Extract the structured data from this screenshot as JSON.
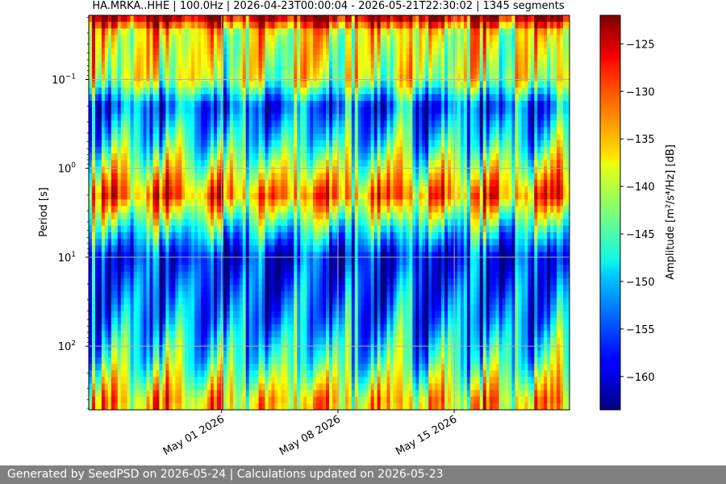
{
  "chart_data": {
    "type": "heatmap",
    "title": "HA.MRKA..HHE | 100.0Hz | 2026-04-23T00:00:04 - 2026-05-21T22:30:02 | 1345 segments",
    "ylabel": "Period [s]",
    "xlabel": "",
    "y_scale": "log",
    "y_direction": "increasing-downward",
    "ylim": [
      0.019,
      520
    ],
    "xlim": [
      "2026-04-23T00:00:04",
      "2026-05-21T22:30:02"
    ],
    "grid": true,
    "x_ticks": [
      "May 01 2026",
      "May 08 2026",
      "May 15 2026"
    ],
    "y_ticks": [
      {
        "value": 0.1,
        "base": "10",
        "exp": "−1"
      },
      {
        "value": 1,
        "base": "10",
        "exp": "0"
      },
      {
        "value": 10,
        "base": "10",
        "exp": "1"
      },
      {
        "value": 100,
        "base": "10",
        "exp": "2"
      }
    ],
    "colorbar": {
      "label": "Amplitude [m²/s⁴/Hz] [dB]",
      "range": [
        -163.5,
        -122
      ],
      "ticks": [
        -125,
        -130,
        -135,
        -140,
        -145,
        -150,
        -155,
        -160
      ],
      "colormap": "jet"
    },
    "segments": 1345,
    "sampling_rate_hz": 100.0,
    "period_band_profile": [
      {
        "period": 0.02,
        "db": -124
      },
      {
        "period": 0.03,
        "db": -138
      },
      {
        "period": 0.1,
        "db": -140
      },
      {
        "period": 0.2,
        "db": -155
      },
      {
        "period": 0.5,
        "db": -148
      },
      {
        "period": 2,
        "db": -132
      },
      {
        "period": 5,
        "db": -148
      },
      {
        "period": 10,
        "db": -158
      },
      {
        "period": 50,
        "db": -153
      },
      {
        "period": 150,
        "db": -146
      },
      {
        "period": 400,
        "db": -136
      }
    ]
  },
  "footer": {
    "text": "Generated by SeedPSD on 2026-05-24 | Calculations updated on 2026-05-23"
  }
}
